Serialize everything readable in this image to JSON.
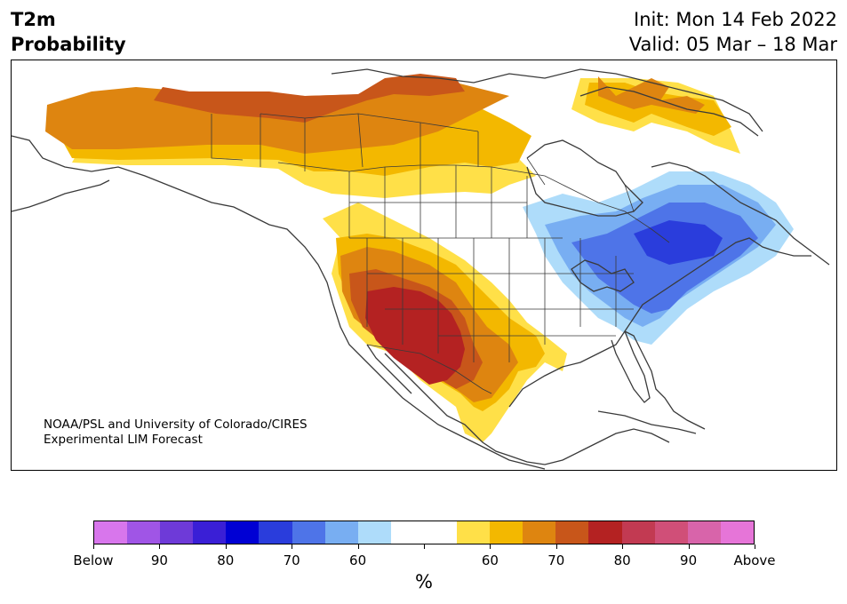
{
  "header": {
    "variable": "T2m",
    "product": "Probability",
    "init": "Init: Mon 14 Feb 2022",
    "valid": "Valid: 05 Mar – 18 Mar"
  },
  "credit": {
    "line1": "NOAA/PSL and University of Colorado/CIRES",
    "line2": "Experimental LIM Forecast"
  },
  "colorbar": {
    "colors": [
      "#d876ec",
      "#a055e6",
      "#6e3ad8",
      "#3a1fd6",
      "#0000d4",
      "#2a3ddc",
      "#4e74e8",
      "#78aef2",
      "#aedcfa",
      "#ffffff",
      "#ffffff",
      "#ffe048",
      "#f3b800",
      "#de8510",
      "#c8561a",
      "#b42222",
      "#c23a52",
      "#d04f78",
      "#d864aa",
      "#e675d8"
    ],
    "labels": [
      "Below",
      "90",
      "80",
      "70",
      "60",
      "60",
      "70",
      "80",
      "90",
      "Above"
    ],
    "unit": "%"
  },
  "map": {
    "colors": {
      "y1": "#ffe048",
      "y2": "#f3b800",
      "o1": "#de8510",
      "o2": "#c8561a",
      "r1": "#b42222",
      "b1": "#aedcfa",
      "b2": "#78aef2",
      "b3": "#4e74e8",
      "b4": "#2a3ddc",
      "line": "#3a3a3a"
    }
  }
}
